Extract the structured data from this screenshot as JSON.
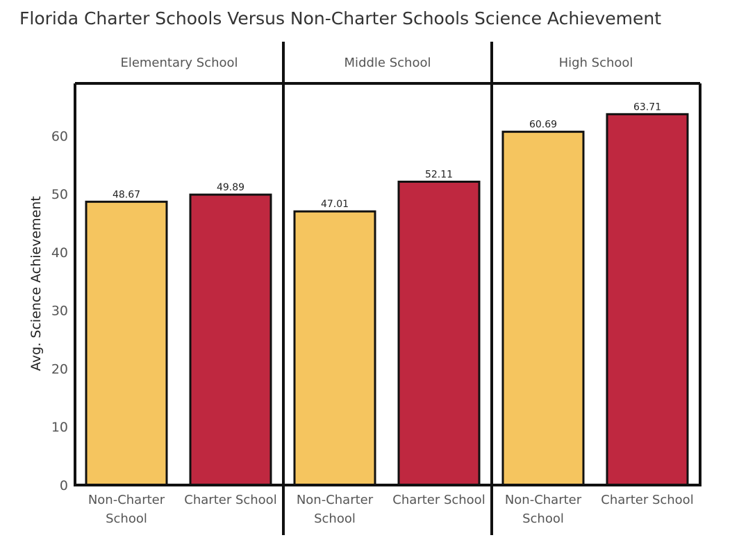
{
  "chart_data": {
    "type": "bar",
    "title": "Florida Charter Schools Versus Non-Charter Schools Science Achievement",
    "ylabel": "Avg. Science Achievement",
    "ylim": [
      0,
      69
    ],
    "yticks": [
      0,
      10,
      20,
      30,
      40,
      50,
      60
    ],
    "grid": false,
    "legend": "none",
    "panels": [
      {
        "name": "Elementary School",
        "categories": [
          "Non-Charter School",
          "Charter School"
        ],
        "values": [
          48.67,
          49.89
        ]
      },
      {
        "name": "Middle School",
        "categories": [
          "Non-Charter School",
          "Charter School"
        ],
        "values": [
          47.01,
          52.11
        ]
      },
      {
        "name": "High School",
        "categories": [
          "Non-Charter School",
          "Charter School"
        ],
        "values": [
          60.69,
          63.71
        ]
      }
    ],
    "colors": {
      "Non-Charter School": "#f5c55f",
      "Charter School": "#bf2840"
    }
  }
}
